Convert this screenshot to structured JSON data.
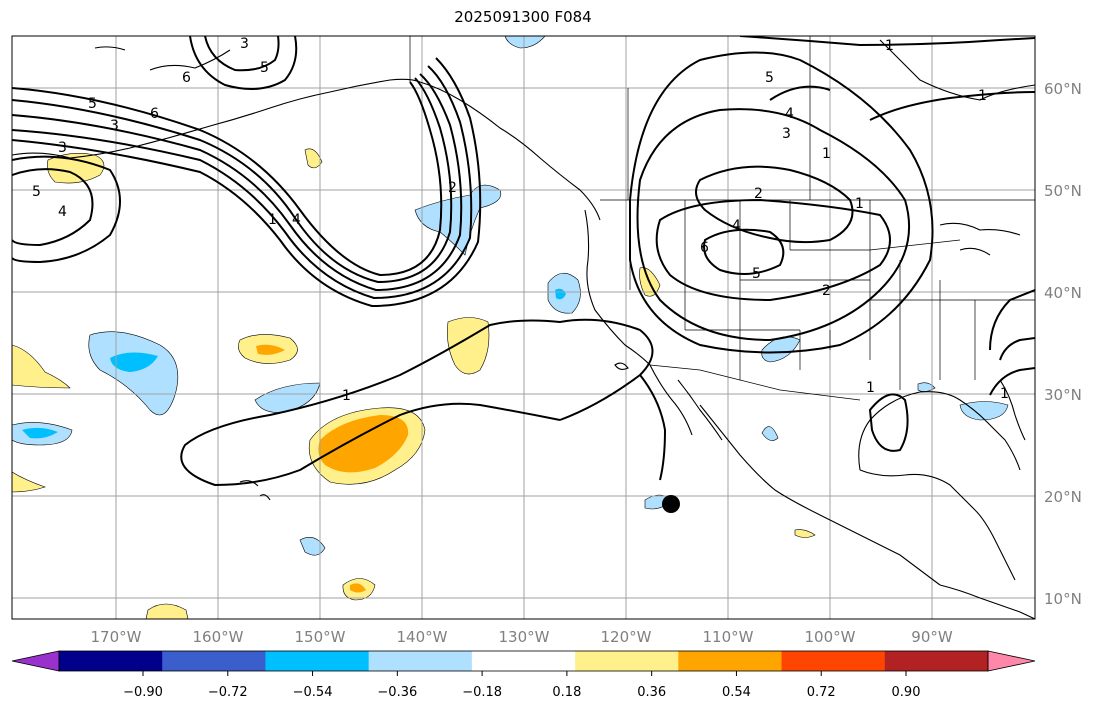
{
  "title": "2025091300 F084",
  "latitude_labels": [
    "60°N",
    "50°N",
    "40°N",
    "30°N",
    "20°N",
    "10°N"
  ],
  "longitude_labels": [
    "170°W",
    "160°W",
    "150°W",
    "140°W",
    "130°W",
    "120°W",
    "110°W",
    "100°W",
    "90°W"
  ],
  "colorbar": {
    "ticks": [
      "−0.90",
      "−0.72",
      "−0.54",
      "−0.36",
      "−0.18",
      "0.18",
      "0.36",
      "0.54",
      "0.72",
      "0.90"
    ],
    "colors": [
      "#9932cc",
      "#00008b",
      "#3a5fcd",
      "#00bfff",
      "#b0e0ff",
      "#ffffff",
      "#fff08c",
      "#ffa500",
      "#ff4500",
      "#b22222",
      "#ff88aa"
    ]
  },
  "contour_labels": [
    "1",
    "2",
    "3",
    "4",
    "5",
    "6"
  ],
  "marker_color": "#000000"
}
